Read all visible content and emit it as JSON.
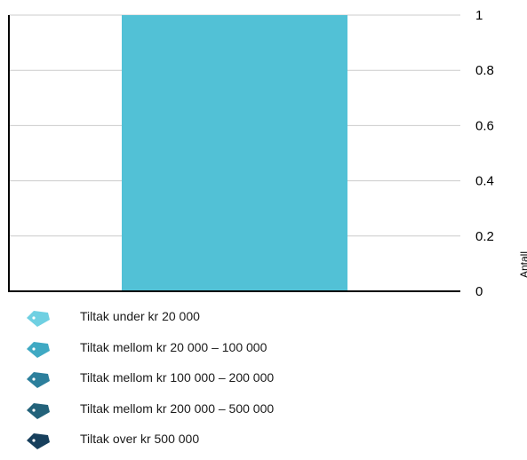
{
  "chart_data": {
    "type": "bar",
    "categories": [
      ""
    ],
    "values": [
      1
    ],
    "title": "",
    "xlabel": "",
    "ylabel": "Antall",
    "ylim": [
      0,
      1
    ],
    "yticks": [
      "0",
      "0.2",
      "0.4",
      "0.6",
      "0.8",
      "1"
    ],
    "y_axis_side": "right",
    "grid": true,
    "bar_color": "#52c1d6"
  },
  "legend": {
    "items": [
      {
        "label": "Tiltak under kr 20 000",
        "color": "#6fd0e2",
        "icon": "price-tag-icon"
      },
      {
        "label": "Tiltak mellom kr 20 000 – 100 000",
        "color": "#3fa9c3",
        "icon": "price-tag-icon"
      },
      {
        "label": "Tiltak mellom kr 100 000 – 200 000",
        "color": "#2c7f9c",
        "icon": "price-tag-icon"
      },
      {
        "label": "Tiltak mellom kr 200 000 – 500 000",
        "color": "#23627a",
        "icon": "price-tag-icon"
      },
      {
        "label": "Tiltak over kr 500 000",
        "color": "#173f5c",
        "icon": "price-tag-icon"
      }
    ]
  }
}
